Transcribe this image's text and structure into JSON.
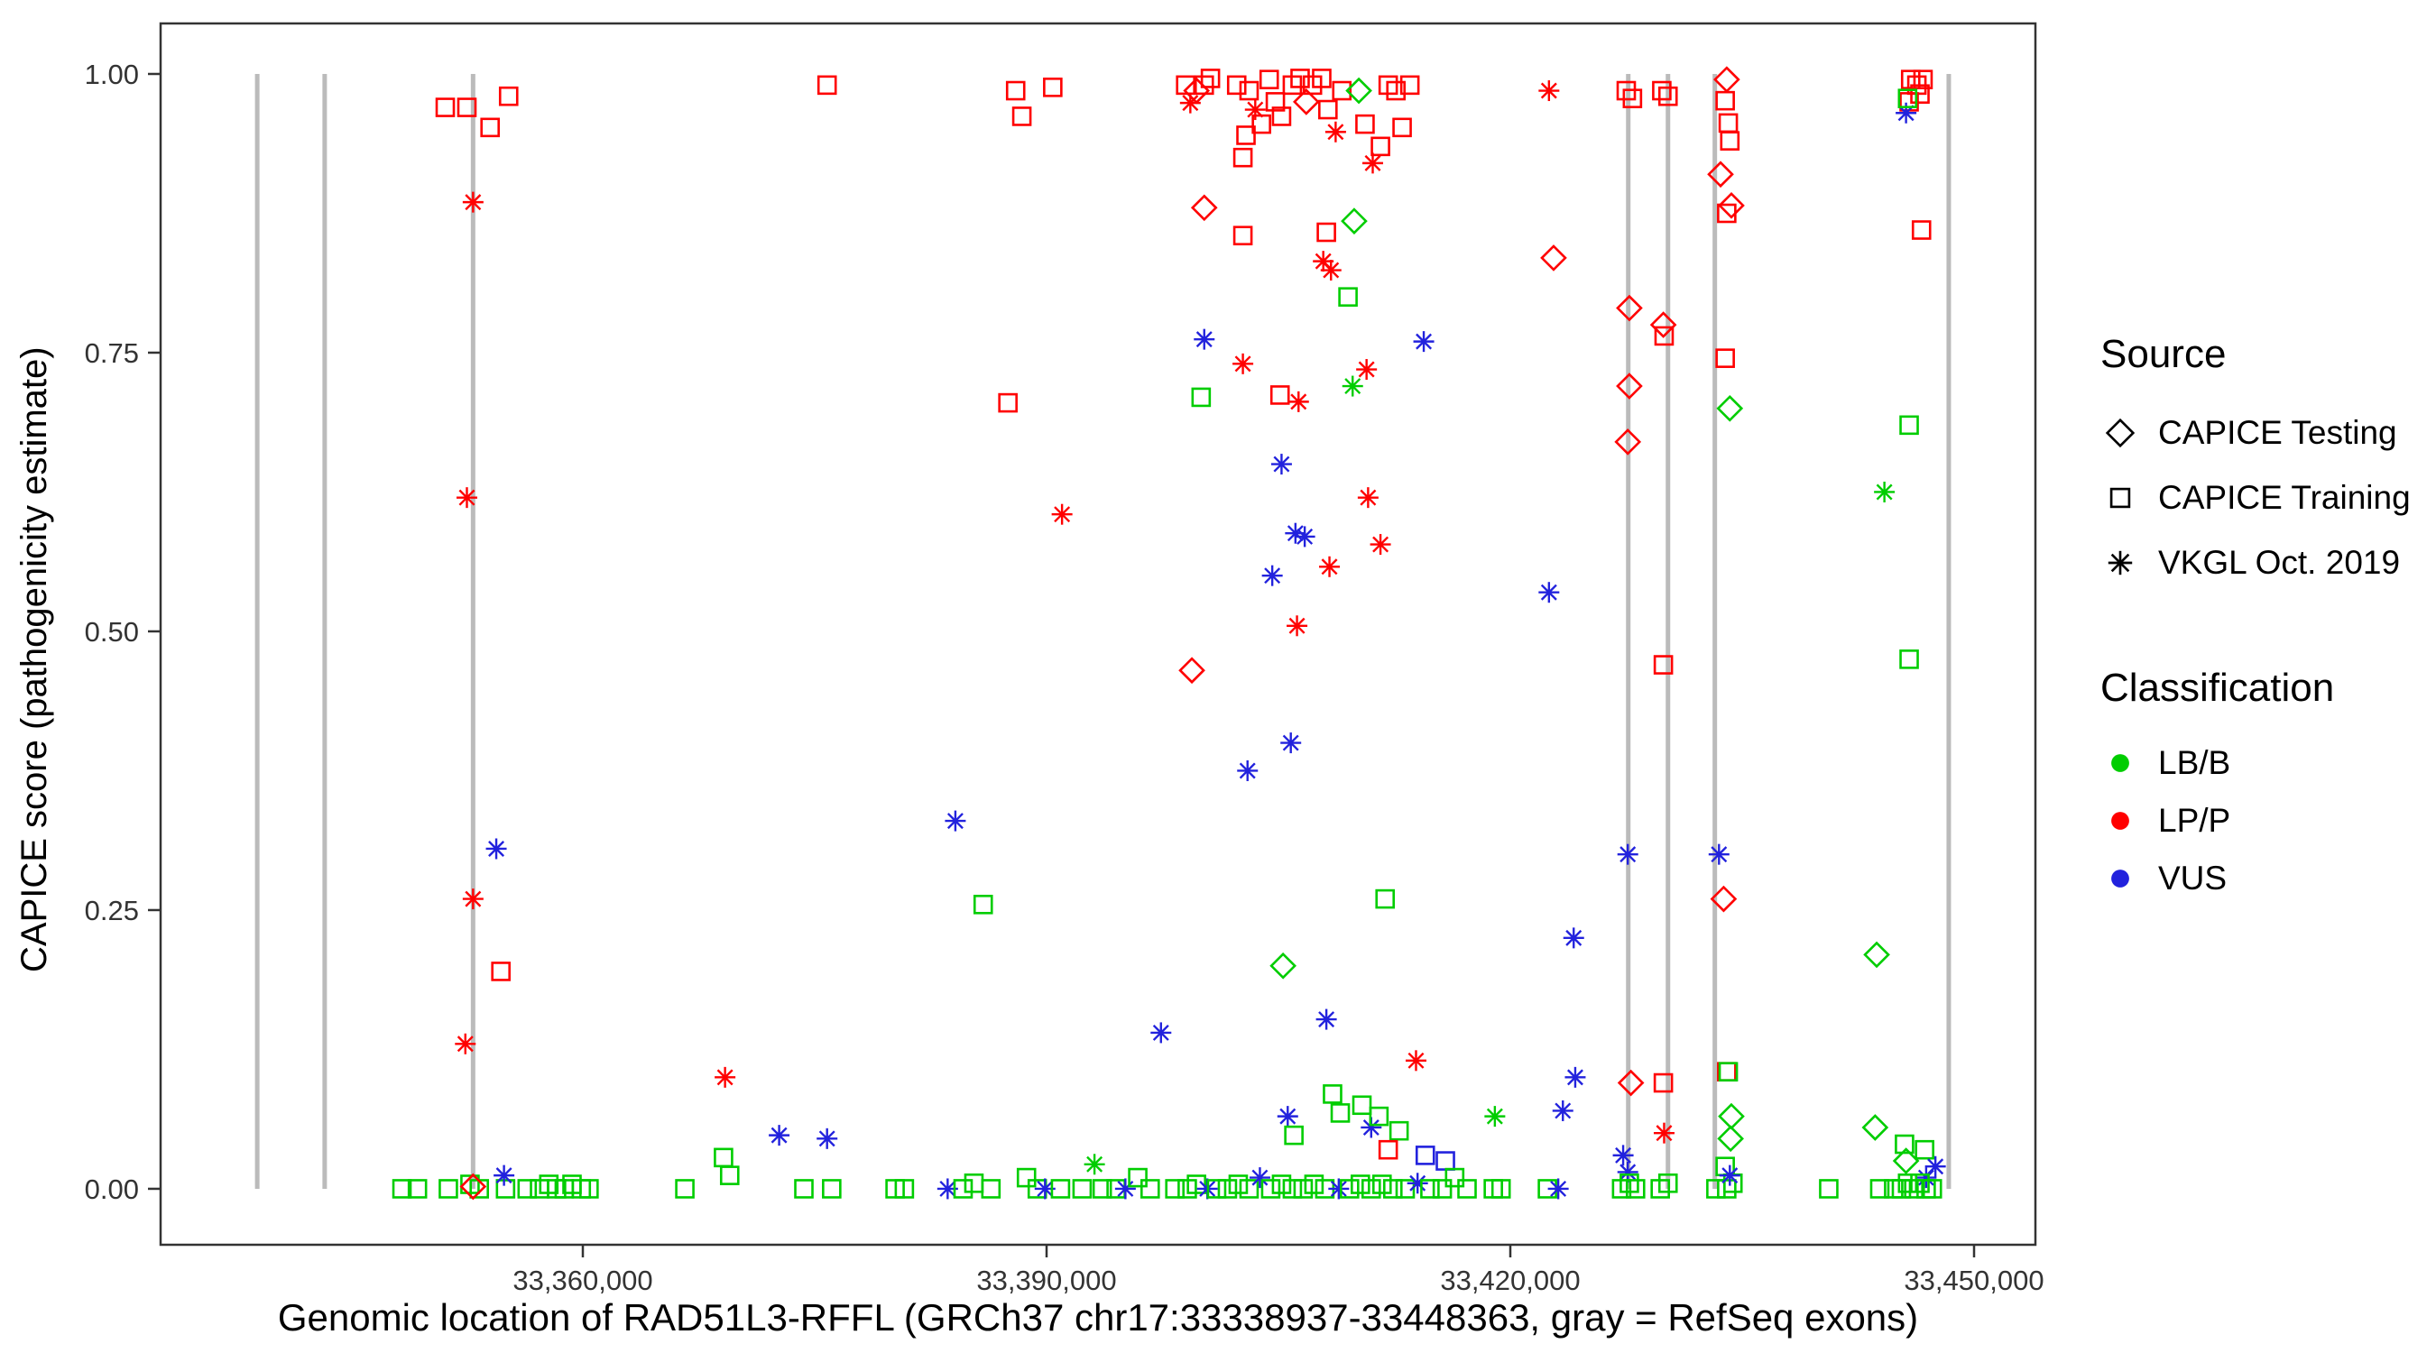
{
  "legend": {
    "source_title": "Source",
    "sources": [
      {
        "id": "testing",
        "label": "CAPICE Testing",
        "marker": "diamond"
      },
      {
        "id": "training",
        "label": "CAPICE Training",
        "marker": "square"
      },
      {
        "id": "vkgl",
        "label": "VKGL Oct. 2019",
        "marker": "asterisk"
      }
    ],
    "classification_title": "Classification",
    "classifications": [
      {
        "id": "B",
        "label": "LB/B",
        "color": "#00CD00"
      },
      {
        "id": "P",
        "label": "LP/P",
        "color": "#FF0000"
      },
      {
        "id": "U",
        "label": "VUS",
        "color": "#2222DD"
      }
    ]
  },
  "chart_data": {
    "type": "scatter",
    "xlabel": "Genomic location of RAD51L3-RFFL (GRCh37 chr17:33338937-33448363, gray = RefSeq exons)",
    "ylabel": "CAPICE score (pathogenicity estimate)",
    "xlim": [
      33332685,
      33453969
    ],
    "ylim": [
      -0.0502,
      1.0453
    ],
    "x_ticks": [
      {
        "value": 33360000,
        "label": "33,360,000"
      },
      {
        "value": 33390000,
        "label": "33,390,000"
      },
      {
        "value": 33420000,
        "label": "33,420,000"
      },
      {
        "value": 33450000,
        "label": "33,450,000"
      }
    ],
    "y_ticks": [
      {
        "value": 0.0,
        "label": "0.00"
      },
      {
        "value": 0.25,
        "label": "0.25"
      },
      {
        "value": 0.5,
        "label": "0.50"
      },
      {
        "value": 0.75,
        "label": "0.75"
      },
      {
        "value": 1.0,
        "label": "1.00"
      }
    ],
    "grid": false,
    "legend_position": "right",
    "exon_color": "#BBBBBB",
    "exon_positions": [
      33338937,
      33343300,
      33352900,
      33427630,
      33430200,
      33433230,
      33448363
    ],
    "source_codes": {
      "T": "CAPICE Testing (open diamond)",
      "R": "CAPICE Training (open square)",
      "V": "VKGL Oct. 2019 (asterisk)"
    },
    "class_codes": {
      "B": "LB/B",
      "P": "LP/P",
      "U": "VUS"
    },
    "class_colors": {
      "B": "#00CD00",
      "P": "#FF0000",
      "U": "#2222DD"
    },
    "points": [
      [
        33348300,
        0,
        "R",
        "B"
      ],
      [
        33349300,
        0,
        "R",
        "B"
      ],
      [
        33351300,
        0,
        "R",
        "B"
      ],
      [
        33352700,
        0.004,
        "R",
        "B"
      ],
      [
        33353300,
        0,
        "R",
        "B"
      ],
      [
        33355000,
        0,
        "R",
        "B"
      ],
      [
        33356400,
        0,
        "R",
        "B"
      ],
      [
        33357200,
        0,
        "R",
        "B"
      ],
      [
        33357800,
        0.004,
        "R",
        "B"
      ],
      [
        33358300,
        0,
        "R",
        "B"
      ],
      [
        33358800,
        0,
        "R",
        "B"
      ],
      [
        33359300,
        0.004,
        "R",
        "B"
      ],
      [
        33359900,
        0,
        "R",
        "B"
      ],
      [
        33360400,
        0,
        "R",
        "B"
      ],
      [
        33351100,
        0.97,
        "R",
        "P"
      ],
      [
        33352500,
        0.97,
        "R",
        "P"
      ],
      [
        33355200,
        0.98,
        "R",
        "P"
      ],
      [
        33354000,
        0.952,
        "R",
        "P"
      ],
      [
        33352900,
        0.885,
        "V",
        "P"
      ],
      [
        33352500,
        0.62,
        "V",
        "P"
      ],
      [
        33354400,
        0.305,
        "V",
        "U"
      ],
      [
        33352900,
        0.26,
        "V",
        "P"
      ],
      [
        33354700,
        0.195,
        "R",
        "P"
      ],
      [
        33352400,
        0.13,
        "V",
        "P"
      ],
      [
        33354900,
        0.012,
        "V",
        "U"
      ],
      [
        33352900,
        0.002,
        "T",
        "P"
      ],
      [
        33366600,
        0,
        "R",
        "B"
      ],
      [
        33369100,
        0.028,
        "R",
        "B"
      ],
      [
        33369500,
        0.012,
        "R",
        "B"
      ],
      [
        33369200,
        0.1,
        "V",
        "P"
      ],
      [
        33372700,
        0.048,
        "V",
        "U"
      ],
      [
        33375800,
        0.045,
        "V",
        "U"
      ],
      [
        33374300,
        0,
        "R",
        "B"
      ],
      [
        33376100,
        0,
        "R",
        "B"
      ],
      [
        33375800,
        0.99,
        "R",
        "P"
      ],
      [
        33380200,
        0,
        "R",
        "B"
      ],
      [
        33380800,
        0,
        "R",
        "B"
      ],
      [
        33383600,
        0,
        "V",
        "U"
      ],
      [
        33384100,
        0.33,
        "V",
        "U"
      ],
      [
        33385900,
        0.255,
        "R",
        "B"
      ],
      [
        33387500,
        0.705,
        "R",
        "P"
      ],
      [
        33388000,
        0.985,
        "R",
        "P"
      ],
      [
        33388400,
        0.962,
        "R",
        "P"
      ],
      [
        33390400,
        0.988,
        "R",
        "P"
      ],
      [
        33391000,
        0.605,
        "V",
        "P"
      ],
      [
        33384600,
        0,
        "R",
        "B"
      ],
      [
        33385300,
        0.005,
        "R",
        "B"
      ],
      [
        33386400,
        0,
        "R",
        "B"
      ],
      [
        33388700,
        0.01,
        "R",
        "B"
      ],
      [
        33389400,
        0,
        "R",
        "B"
      ],
      [
        33389900,
        0,
        "V",
        "U"
      ],
      [
        33390900,
        0,
        "R",
        "B"
      ],
      [
        33392300,
        0,
        "R",
        "B"
      ],
      [
        33393100,
        0.022,
        "V",
        "B"
      ],
      [
        33393600,
        0,
        "R",
        "B"
      ],
      [
        33394500,
        0,
        "R",
        "B"
      ],
      [
        33395100,
        0,
        "V",
        "U"
      ],
      [
        33395900,
        0.01,
        "R",
        "B"
      ],
      [
        33396700,
        0,
        "R",
        "B"
      ],
      [
        33397400,
        0.14,
        "V",
        "U"
      ],
      [
        33398300,
        0,
        "R",
        "B"
      ],
      [
        33399000,
        0.99,
        "R",
        "P"
      ],
      [
        33399300,
        0.974,
        "V",
        "P"
      ],
      [
        33399700,
        0.985,
        "T",
        "P"
      ],
      [
        33400200,
        0.99,
        "R",
        "P"
      ],
      [
        33400600,
        0.996,
        "R",
        "P"
      ],
      [
        33402300,
        0.99,
        "R",
        "P"
      ],
      [
        33402700,
        0.925,
        "R",
        "P"
      ],
      [
        33402900,
        0.945,
        "R",
        "P"
      ],
      [
        33403100,
        0.985,
        "R",
        "P"
      ],
      [
        33403500,
        0.968,
        "V",
        "P"
      ],
      [
        33403900,
        0.955,
        "R",
        "P"
      ],
      [
        33404400,
        0.995,
        "R",
        "P"
      ],
      [
        33404800,
        0.975,
        "R",
        "P"
      ],
      [
        33405200,
        0.962,
        "R",
        "P"
      ],
      [
        33405900,
        0.99,
        "R",
        "P"
      ],
      [
        33406400,
        0.996,
        "R",
        "P"
      ],
      [
        33406800,
        0.975,
        "T",
        "P"
      ],
      [
        33407200,
        0.99,
        "R",
        "P"
      ],
      [
        33407800,
        0.996,
        "R",
        "P"
      ],
      [
        33408200,
        0.968,
        "R",
        "P"
      ],
      [
        33408700,
        0.948,
        "V",
        "P"
      ],
      [
        33409100,
        0.985,
        "R",
        "P"
      ],
      [
        33410200,
        0.985,
        "T",
        "B"
      ],
      [
        33410600,
        0.955,
        "R",
        "P"
      ],
      [
        33411100,
        0.92,
        "V",
        "P"
      ],
      [
        33411600,
        0.935,
        "R",
        "P"
      ],
      [
        33412100,
        0.99,
        "R",
        "P"
      ],
      [
        33412600,
        0.985,
        "R",
        "P"
      ],
      [
        33413000,
        0.952,
        "R",
        "P"
      ],
      [
        33413500,
        0.99,
        "R",
        "P"
      ],
      [
        33400200,
        0.88,
        "T",
        "P"
      ],
      [
        33402700,
        0.855,
        "R",
        "P"
      ],
      [
        33408100,
        0.858,
        "R",
        "P"
      ],
      [
        33409900,
        0.868,
        "T",
        "B"
      ],
      [
        33409500,
        0.8,
        "R",
        "B"
      ],
      [
        33407900,
        0.832,
        "V",
        "P"
      ],
      [
        33408400,
        0.824,
        "V",
        "P"
      ],
      [
        33400200,
        0.762,
        "V",
        "U"
      ],
      [
        33402700,
        0.74,
        "V",
        "P"
      ],
      [
        33400000,
        0.71,
        "R",
        "B"
      ],
      [
        33405100,
        0.712,
        "R",
        "P"
      ],
      [
        33406300,
        0.706,
        "V",
        "P"
      ],
      [
        33409800,
        0.72,
        "V",
        "B"
      ],
      [
        33410700,
        0.735,
        "V",
        "P"
      ],
      [
        33414400,
        0.76,
        "V",
        "U"
      ],
      [
        33405200,
        0.65,
        "V",
        "U"
      ],
      [
        33406100,
        0.588,
        "V",
        "U"
      ],
      [
        33406700,
        0.585,
        "V",
        "U"
      ],
      [
        33404600,
        0.55,
        "V",
        "U"
      ],
      [
        33408300,
        0.558,
        "V",
        "P"
      ],
      [
        33410800,
        0.62,
        "V",
        "P"
      ],
      [
        33411600,
        0.578,
        "V",
        "P"
      ],
      [
        33406200,
        0.505,
        "V",
        "P"
      ],
      [
        33399400,
        0.465,
        "T",
        "P"
      ],
      [
        33405800,
        0.4,
        "V",
        "U"
      ],
      [
        33403000,
        0.375,
        "V",
        "U"
      ],
      [
        33405300,
        0.2,
        "T",
        "B"
      ],
      [
        33408100,
        0.152,
        "V",
        "U"
      ],
      [
        33411900,
        0.26,
        "R",
        "B"
      ],
      [
        33413900,
        0.115,
        "V",
        "P"
      ],
      [
        33405600,
        0.065,
        "V",
        "U"
      ],
      [
        33406000,
        0.048,
        "R",
        "B"
      ],
      [
        33408500,
        0.085,
        "R",
        "B"
      ],
      [
        33409000,
        0.068,
        "R",
        "B"
      ],
      [
        33410400,
        0.075,
        "R",
        "B"
      ],
      [
        33411000,
        0.055,
        "V",
        "U"
      ],
      [
        33411500,
        0.065,
        "R",
        "B"
      ],
      [
        33412800,
        0.052,
        "R",
        "B"
      ],
      [
        33412100,
        0.035,
        "R",
        "P"
      ],
      [
        33414500,
        0.03,
        "R",
        "U"
      ],
      [
        33415800,
        0.025,
        "R",
        "U"
      ],
      [
        33399100,
        0,
        "R",
        "B"
      ],
      [
        33399700,
        0.004,
        "R",
        "B"
      ],
      [
        33400400,
        0,
        "V",
        "U"
      ],
      [
        33401000,
        0,
        "R",
        "B"
      ],
      [
        33401700,
        0,
        "R",
        "B"
      ],
      [
        33402400,
        0.004,
        "R",
        "B"
      ],
      [
        33403100,
        0,
        "R",
        "B"
      ],
      [
        33403800,
        0.01,
        "V",
        "U"
      ],
      [
        33404500,
        0,
        "R",
        "B"
      ],
      [
        33405200,
        0.004,
        "R",
        "B"
      ],
      [
        33405900,
        0,
        "R",
        "B"
      ],
      [
        33406600,
        0,
        "R",
        "B"
      ],
      [
        33407300,
        0.004,
        "R",
        "B"
      ],
      [
        33408000,
        0,
        "R",
        "B"
      ],
      [
        33408900,
        0,
        "V",
        "U"
      ],
      [
        33409600,
        0,
        "R",
        "B"
      ],
      [
        33410300,
        0.004,
        "R",
        "B"
      ],
      [
        33411000,
        0,
        "R",
        "B"
      ],
      [
        33411700,
        0.004,
        "R",
        "B"
      ],
      [
        33412400,
        0,
        "R",
        "B"
      ],
      [
        33413200,
        0,
        "R",
        "B"
      ],
      [
        33414000,
        0.005,
        "V",
        "U"
      ],
      [
        33414800,
        0,
        "R",
        "B"
      ],
      [
        33415600,
        0,
        "R",
        "B"
      ],
      [
        33416400,
        0.01,
        "R",
        "B"
      ],
      [
        33417200,
        0,
        "R",
        "B"
      ],
      [
        33419000,
        0.065,
        "V",
        "B"
      ],
      [
        33422500,
        0.985,
        "V",
        "P"
      ],
      [
        33422800,
        0.835,
        "T",
        "P"
      ],
      [
        33422500,
        0.535,
        "V",
        "U"
      ],
      [
        33424100,
        0.225,
        "V",
        "U"
      ],
      [
        33423400,
        0.07,
        "V",
        "U"
      ],
      [
        33424200,
        0.1,
        "V",
        "U"
      ],
      [
        33418900,
        0,
        "R",
        "B"
      ],
      [
        33419400,
        0,
        "R",
        "B"
      ],
      [
        33422400,
        0,
        "R",
        "B"
      ],
      [
        33423100,
        0,
        "V",
        "U"
      ],
      [
        33427500,
        0.985,
        "R",
        "P"
      ],
      [
        33427900,
        0.978,
        "R",
        "P"
      ],
      [
        33429800,
        0.985,
        "R",
        "P"
      ],
      [
        33430200,
        0.98,
        "R",
        "P"
      ],
      [
        33427700,
        0.79,
        "T",
        "P"
      ],
      [
        33429900,
        0.775,
        "T",
        "P"
      ],
      [
        33429950,
        0.765,
        "R",
        "P"
      ],
      [
        33427700,
        0.72,
        "T",
        "P"
      ],
      [
        33427600,
        0.67,
        "T",
        "P"
      ],
      [
        33429900,
        0.47,
        "R",
        "P"
      ],
      [
        33427600,
        0.3,
        "V",
        "U"
      ],
      [
        33427800,
        0.095,
        "T",
        "P"
      ],
      [
        33429900,
        0.095,
        "R",
        "P"
      ],
      [
        33429950,
        0.05,
        "V",
        "P"
      ],
      [
        33427300,
        0.03,
        "V",
        "U"
      ],
      [
        33427600,
        0.015,
        "V",
        "U"
      ],
      [
        33427200,
        0,
        "R",
        "B"
      ],
      [
        33427700,
        0.005,
        "R",
        "B"
      ],
      [
        33428100,
        0,
        "R",
        "B"
      ],
      [
        33429700,
        0,
        "R",
        "B"
      ],
      [
        33430200,
        0.005,
        "R",
        "B"
      ],
      [
        33434000,
        0.995,
        "T",
        "P"
      ],
      [
        33433900,
        0.976,
        "R",
        "P"
      ],
      [
        33434100,
        0.956,
        "R",
        "P"
      ],
      [
        33434200,
        0.94,
        "R",
        "P"
      ],
      [
        33433600,
        0.91,
        "T",
        "P"
      ],
      [
        33434000,
        0.875,
        "R",
        "P"
      ],
      [
        33434300,
        0.882,
        "T",
        "P"
      ],
      [
        33433900,
        0.745,
        "R",
        "P"
      ],
      [
        33434200,
        0.7,
        "T",
        "B"
      ],
      [
        33433800,
        0.26,
        "T",
        "P"
      ],
      [
        33433500,
        0.3,
        "V",
        "U"
      ],
      [
        33434000,
        0.105,
        "R",
        "P"
      ],
      [
        33434100,
        0.105,
        "R",
        "B"
      ],
      [
        33434300,
        0.065,
        "T",
        "B"
      ],
      [
        33434250,
        0.045,
        "T",
        "B"
      ],
      [
        33433900,
        0.02,
        "R",
        "B"
      ],
      [
        33433300,
        0,
        "R",
        "B"
      ],
      [
        33434000,
        0,
        "R",
        "B"
      ],
      [
        33434400,
        0.005,
        "R",
        "B"
      ],
      [
        33434200,
        0.012,
        "V",
        "U"
      ],
      [
        33440600,
        0,
        "R",
        "B"
      ],
      [
        33445900,
        0.995,
        "R",
        "P"
      ],
      [
        33446300,
        0.99,
        "R",
        "P"
      ],
      [
        33446700,
        0.995,
        "R",
        "P"
      ],
      [
        33445800,
        0.975,
        "R",
        "P"
      ],
      [
        33446500,
        0.982,
        "R",
        "P"
      ],
      [
        33445600,
        0.965,
        "V",
        "U"
      ],
      [
        33445700,
        0.978,
        "R",
        "B"
      ],
      [
        33446600,
        0.86,
        "R",
        "P"
      ],
      [
        33445800,
        0.685,
        "R",
        "B"
      ],
      [
        33444200,
        0.625,
        "V",
        "B"
      ],
      [
        33445800,
        0.475,
        "R",
        "B"
      ],
      [
        33443700,
        0.21,
        "T",
        "B"
      ],
      [
        33443600,
        0.055,
        "T",
        "B"
      ],
      [
        33445500,
        0.04,
        "R",
        "B"
      ],
      [
        33446800,
        0.035,
        "R",
        "B"
      ],
      [
        33445600,
        0.025,
        "T",
        "B"
      ],
      [
        33447500,
        0.02,
        "V",
        "U"
      ],
      [
        33446900,
        0.01,
        "V",
        "U"
      ],
      [
        33443900,
        0,
        "R",
        "B"
      ],
      [
        33444800,
        0,
        "R",
        "B"
      ],
      [
        33445300,
        0,
        "R",
        "B"
      ],
      [
        33445700,
        0.005,
        "R",
        "B"
      ],
      [
        33446100,
        0,
        "R",
        "B"
      ],
      [
        33446500,
        0.005,
        "R",
        "B"
      ],
      [
        33446900,
        0,
        "R",
        "B"
      ],
      [
        33447300,
        0,
        "R",
        "B"
      ]
    ]
  }
}
